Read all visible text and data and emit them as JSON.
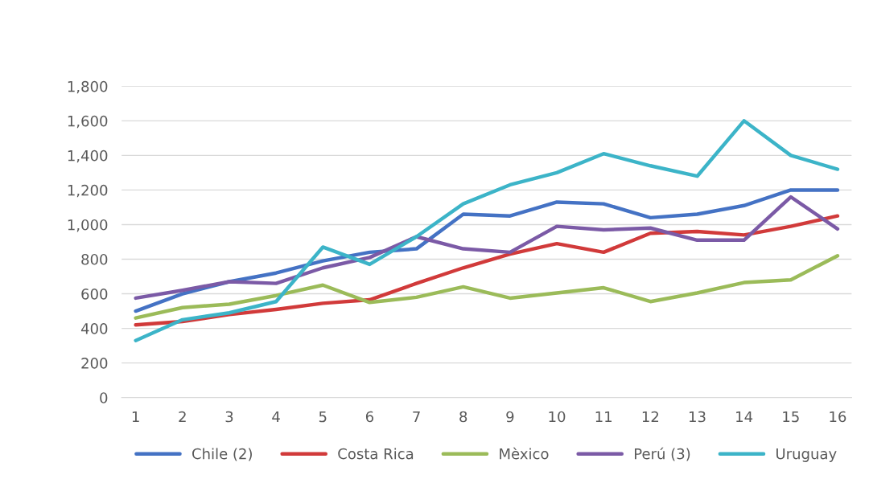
{
  "chart_data": {
    "type": "line",
    "categories": [
      "1",
      "2",
      "3",
      "4",
      "5",
      "6",
      "7",
      "8",
      "9",
      "10",
      "11",
      "12",
      "13",
      "14",
      "15",
      "16"
    ],
    "series": [
      {
        "name": "Chile (2)",
        "color": "#4472c4",
        "values": [
          500,
          600,
          670,
          720,
          790,
          840,
          860,
          1060,
          1050,
          1130,
          1120,
          1040,
          1060,
          1110,
          1200,
          1200
        ]
      },
      {
        "name": "Costa Rica",
        "color": "#d13a3a",
        "values": [
          420,
          440,
          480,
          510,
          545,
          565,
          660,
          750,
          830,
          890,
          840,
          950,
          960,
          940,
          990,
          1050
        ]
      },
      {
        "name": "Mèxico",
        "color": "#9bbb59",
        "values": [
          460,
          520,
          540,
          590,
          650,
          550,
          580,
          640,
          575,
          605,
          635,
          555,
          605,
          665,
          680,
          820
        ]
      },
      {
        "name": "Perú (3)",
        "color": "#7b5aa6",
        "values": [
          575,
          620,
          670,
          660,
          750,
          810,
          930,
          860,
          840,
          990,
          970,
          980,
          910,
          910,
          1160,
          975
        ]
      },
      {
        "name": "Uruguay",
        "color": "#3cb4c8",
        "values": [
          330,
          450,
          490,
          555,
          870,
          770,
          930,
          1120,
          1230,
          1300,
          1410,
          1340,
          1280,
          1600,
          1400,
          1320
        ]
      }
    ],
    "ylim": [
      0,
      1800
    ],
    "yticks": [
      0,
      200,
      400,
      600,
      800,
      {
        "value": 1000,
        "label": "1,000"
      },
      {
        "value": 1200,
        "label": "1,200"
      },
      {
        "value": 1400,
        "label": "1,400"
      },
      {
        "value": 1600,
        "label": "1,600"
      },
      {
        "value": 1800,
        "label": "1,800"
      }
    ],
    "grid": "y",
    "legend": "bottom",
    "marker": "none",
    "line_style": "solid"
  }
}
